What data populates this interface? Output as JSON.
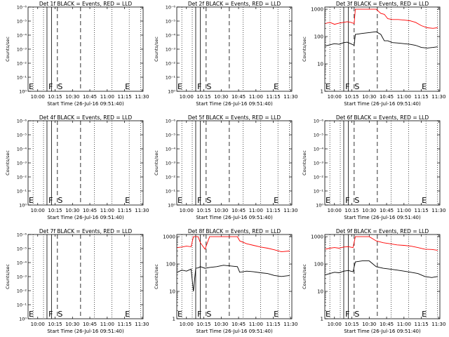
{
  "figure": {
    "xtick_labels": [
      "10:00",
      "10:15",
      "10:30",
      "10:45",
      "11:00",
      "11:15",
      "11:30"
    ],
    "ytick_labels_exp": [
      "10⁰",
      "10⁻¹",
      "10⁻²",
      "10⁻³",
      "10⁻⁴",
      "10⁻⁵",
      "10⁻⁶"
    ],
    "ytick_labels_log": [
      "1",
      "10",
      "100",
      "1000"
    ],
    "event_markers": [
      "E",
      "F",
      "S",
      "E"
    ]
  },
  "chart_data": [
    {
      "type": "line",
      "title": "Det 1f BLACK = Events, RED = LLD",
      "xlabel": "Start Time (26-Jul-16 09:51:40)",
      "ylabel": "Counts/sec",
      "xlim": [
        "09:51:40",
        "11:31:00"
      ],
      "ylim": [
        1e-06,
        1
      ],
      "yscale": "log",
      "series": []
    },
    {
      "type": "line",
      "title": "Det 2f BLACK = Events, RED = LLD",
      "xlabel": "Start Time (26-Jul-16 09:51:40)",
      "ylabel": "Counts/sec",
      "xlim": [
        "09:51:40",
        "11:31:00"
      ],
      "ylim": [
        1e-06,
        1
      ],
      "yscale": "log",
      "series": []
    },
    {
      "type": "line",
      "title": "Det 3f BLACK = Events, RED = LLD",
      "xlabel": "Start Time (26-Jul-16 09:51:40)",
      "ylabel": "Counts/sec",
      "xlim": [
        "09:51:40",
        "11:31:00"
      ],
      "ylim": [
        1,
        1200
      ],
      "yscale": "log",
      "series": [
        {
          "color": "#ff0000",
          "x": [
            "09:52",
            "09:56",
            "10:00",
            "10:04",
            "10:08",
            "10:11",
            "10:14",
            "10:17",
            "10:18",
            "10:24",
            "10:30",
            "10:36",
            "10:40",
            "10:43",
            "10:46",
            "10:50",
            "10:55",
            "11:00",
            "11:05",
            "11:10",
            "11:15",
            "11:20",
            "11:25",
            "11:29"
          ],
          "y": [
            300,
            330,
            280,
            310,
            330,
            350,
            330,
            300,
            1000,
            1000,
            1000,
            1000,
            700,
            650,
            450,
            420,
            420,
            400,
            380,
            330,
            250,
            210,
            200,
            210
          ]
        },
        {
          "color": "#000000",
          "x": [
            "09:52",
            "09:56",
            "10:00",
            "10:04",
            "10:08",
            "10:11",
            "10:14",
            "10:17",
            "10:18",
            "10:24",
            "10:30",
            "10:36",
            "10:40",
            "10:43",
            "10:46",
            "10:50",
            "10:55",
            "11:00",
            "11:05",
            "11:10",
            "11:15",
            "11:20",
            "11:25",
            "11:29"
          ],
          "y": [
            45,
            50,
            55,
            52,
            60,
            62,
            55,
            48,
            120,
            130,
            140,
            150,
            120,
            70,
            70,
            60,
            58,
            55,
            52,
            48,
            40,
            38,
            40,
            42
          ]
        }
      ]
    },
    {
      "type": "line",
      "title": "Det 4f BLACK = Events, RED = LLD",
      "xlabel": "Start Time (26-Jul-16 09:51:40)",
      "ylabel": "Counts/sec",
      "xlim": [
        "09:51:40",
        "11:31:00"
      ],
      "ylim": [
        1e-06,
        1
      ],
      "yscale": "log",
      "series": []
    },
    {
      "type": "line",
      "title": "Det 5f BLACK = Events, RED = LLD",
      "xlabel": "Start Time (26-Jul-16 09:51:40)",
      "ylabel": "Counts/sec",
      "xlim": [
        "09:51:40",
        "11:31:00"
      ],
      "ylim": [
        1e-06,
        1
      ],
      "yscale": "log",
      "series": []
    },
    {
      "type": "line",
      "title": "Det 6f BLACK = Events, RED = LLD",
      "xlabel": "Start Time (26-Jul-16 09:51:40)",
      "ylabel": "Counts/sec",
      "xlim": [
        "09:51:40",
        "11:31:00"
      ],
      "ylim": [
        1e-06,
        1
      ],
      "yscale": "log",
      "series": []
    },
    {
      "type": "line",
      "title": "Det 7f BLACK = Events, RED = LLD",
      "xlabel": "Start Time (26-Jul-16 09:51:40)",
      "ylabel": "Counts/sec",
      "xlim": [
        "09:51:40",
        "11:31:00"
      ],
      "ylim": [
        1e-06,
        1
      ],
      "yscale": "log",
      "series": []
    },
    {
      "type": "line",
      "title": "Det 8f BLACK = Events, RED = LLD",
      "xlabel": "Start Time (26-Jul-16 09:51:40)",
      "ylabel": "Counts/sec",
      "xlim": [
        "09:51:40",
        "11:31:00"
      ],
      "ylim": [
        1,
        1200
      ],
      "yscale": "log",
      "series": [
        {
          "color": "#ff0000",
          "x": [
            "09:52",
            "09:56",
            "10:00",
            "10:04",
            "10:06",
            "10:08",
            "10:10",
            "10:12",
            "10:16",
            "10:20",
            "10:26",
            "10:32",
            "10:38",
            "10:44",
            "10:46",
            "10:52",
            "10:58",
            "11:04",
            "11:10",
            "11:16",
            "11:22",
            "11:29"
          ],
          "y": [
            400,
            420,
            450,
            430,
            1000,
            1000,
            1000,
            600,
            350,
            1000,
            1000,
            1000,
            1000,
            1000,
            700,
            550,
            480,
            420,
            380,
            330,
            280,
            300
          ]
        },
        {
          "color": "#000000",
          "x": [
            "09:52",
            "09:56",
            "10:00",
            "10:04",
            "10:06",
            "10:08",
            "10:10",
            "10:12",
            "10:16",
            "10:20",
            "10:26",
            "10:32",
            "10:38",
            "10:44",
            "10:46",
            "10:52",
            "10:58",
            "11:04",
            "11:10",
            "11:16",
            "11:22",
            "11:29"
          ],
          "y": [
            50,
            60,
            55,
            65,
            10,
            70,
            72,
            80,
            70,
            75,
            80,
            90,
            85,
            80,
            50,
            55,
            52,
            48,
            45,
            38,
            35,
            38
          ]
        }
      ]
    },
    {
      "type": "line",
      "title": "Det 9f BLACK = Events, RED = LLD",
      "xlabel": "Start Time (26-Jul-16 09:51:40)",
      "ylabel": "Counts/sec",
      "xlim": [
        "09:51:40",
        "11:31:00"
      ],
      "ylim": [
        1,
        1200
      ],
      "yscale": "log",
      "series": [
        {
          "color": "#ff0000",
          "x": [
            "09:52",
            "09:56",
            "10:00",
            "10:04",
            "10:08",
            "10:12",
            "10:16",
            "10:18",
            "10:24",
            "10:30",
            "10:36",
            "10:42",
            "10:48",
            "10:54",
            "11:00",
            "11:06",
            "11:12",
            "11:18",
            "11:24",
            "11:29"
          ],
          "y": [
            350,
            380,
            400,
            380,
            420,
            430,
            400,
            1000,
            1000,
            1000,
            700,
            600,
            550,
            500,
            480,
            450,
            400,
            350,
            340,
            320
          ]
        },
        {
          "color": "#000000",
          "x": [
            "09:52",
            "09:56",
            "10:00",
            "10:04",
            "10:08",
            "10:12",
            "10:16",
            "10:18",
            "10:24",
            "10:30",
            "10:36",
            "10:42",
            "10:48",
            "10:54",
            "11:00",
            "11:06",
            "11:12",
            "11:18",
            "11:24",
            "11:29"
          ],
          "y": [
            40,
            45,
            50,
            48,
            55,
            58,
            52,
            120,
            130,
            130,
            80,
            70,
            65,
            60,
            55,
            50,
            45,
            35,
            32,
            35
          ]
        }
      ]
    }
  ]
}
